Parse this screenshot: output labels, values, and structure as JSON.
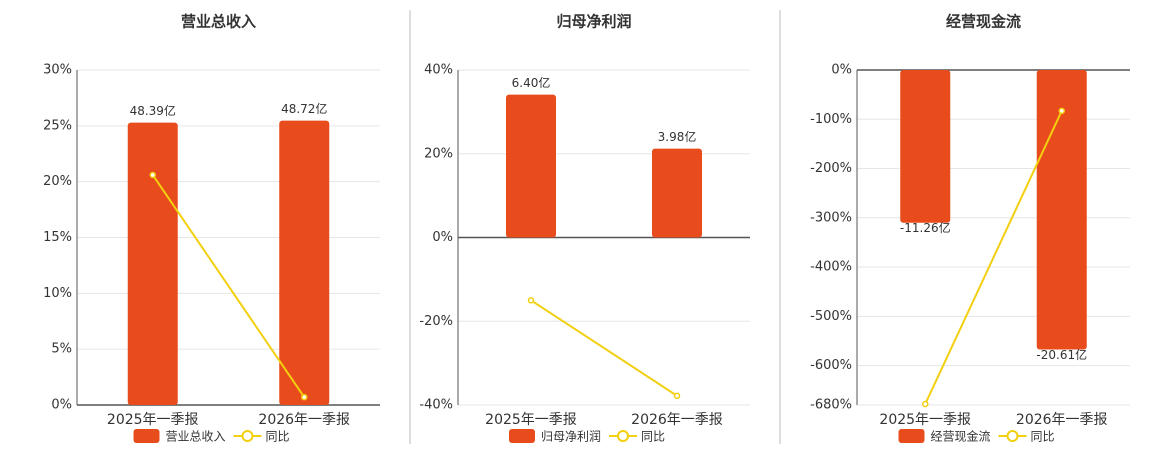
{
  "chart_data": [
    {
      "type": "bar",
      "title": "营业总收入",
      "categories": [
        "2025年一季报",
        "2026年一季报"
      ],
      "series": [
        {
          "name": "营业总收入",
          "color": "#e84c1c",
          "axis": "y2",
          "values": [
            48.39,
            48.72
          ],
          "value_labels": [
            "48.39亿",
            "48.72亿"
          ]
        },
        {
          "name": "同比",
          "type": "line",
          "color": "#f2cf0f",
          "values": [
            20.6,
            0.7
          ]
        }
      ],
      "ylim": [
        0,
        30
      ],
      "yticks": [
        {
          "value": 0,
          "label": "0%"
        },
        {
          "value": 5,
          "label": "5%"
        },
        {
          "value": 10,
          "label": "10%"
        },
        {
          "value": 15,
          "label": "15%"
        },
        {
          "value": 20,
          "label": "20%"
        },
        {
          "value": 25,
          "label": "25%"
        },
        {
          "value": 30,
          "label": "30%"
        }
      ],
      "y2lim": [
        0,
        57.4
      ],
      "grid": true
    },
    {
      "type": "bar",
      "title": "归母净利润",
      "categories": [
        "2025年一季报",
        "2026年一季报"
      ],
      "series": [
        {
          "name": "归母净利润",
          "color": "#e84c1c",
          "axis": "y2",
          "values": [
            6.4,
            3.98
          ],
          "value_labels": [
            "6.40亿",
            "3.98亿"
          ]
        },
        {
          "name": "同比",
          "type": "line",
          "color": "#f2cf0f",
          "values": [
            -15,
            -37.8
          ]
        }
      ],
      "ylim": [
        -40,
        40
      ],
      "yticks": [
        {
          "value": -40,
          "label": "-40%"
        },
        {
          "value": -20,
          "label": "-20%"
        },
        {
          "value": 0,
          "label": "0%"
        },
        {
          "value": 20,
          "label": "20%"
        },
        {
          "value": 40,
          "label": "40%"
        }
      ],
      "y2lim": [
        -7.5,
        7.5
      ],
      "grid": true
    },
    {
      "type": "bar",
      "title": "经营现金流",
      "categories": [
        "2025年一季报",
        "2026年一季报"
      ],
      "series": [
        {
          "name": "经营现金流",
          "color": "#e84c1c",
          "axis": "y2",
          "values": [
            -11.26,
            -20.61
          ],
          "value_labels": [
            "-11.26亿",
            "-20.61亿"
          ]
        },
        {
          "name": "同比",
          "type": "line",
          "color": "#f2cf0f",
          "values": [
            -678,
            -83
          ]
        }
      ],
      "ylim": [
        -680,
        0
      ],
      "yticks": [
        {
          "value": -680,
          "label": "-680%"
        },
        {
          "value": -600,
          "label": "-600%"
        },
        {
          "value": -500,
          "label": "-500%"
        },
        {
          "value": -400,
          "label": "-400%"
        },
        {
          "value": -300,
          "label": "-300%"
        },
        {
          "value": -200,
          "label": "-200%"
        },
        {
          "value": -100,
          "label": "-100%"
        },
        {
          "value": 0,
          "label": "0%"
        }
      ],
      "y2lim": [
        -24.7,
        0
      ],
      "grid": true
    }
  ]
}
